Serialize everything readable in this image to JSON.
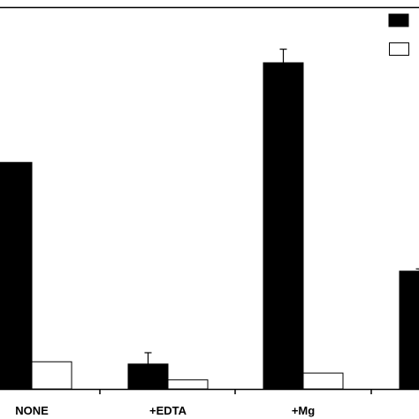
{
  "chart_data": {
    "type": "bar",
    "title": "",
    "xlabel": "",
    "ylabel": "",
    "categories": [
      "NONE",
      "+EDTA",
      "+Mg",
      ""
    ],
    "series": [
      {
        "color": "#000000",
        "values": [
          100,
          11,
          144,
          52
        ],
        "errors": [
          0,
          5,
          6,
          1
        ]
      },
      {
        "color": "#ffffff",
        "values": [
          12,
          4,
          7,
          null
        ],
        "errors": [
          0,
          0,
          0,
          0
        ]
      }
    ],
    "ylim": [
      0,
      160
    ],
    "grid": false,
    "legend_position": "top-right"
  }
}
